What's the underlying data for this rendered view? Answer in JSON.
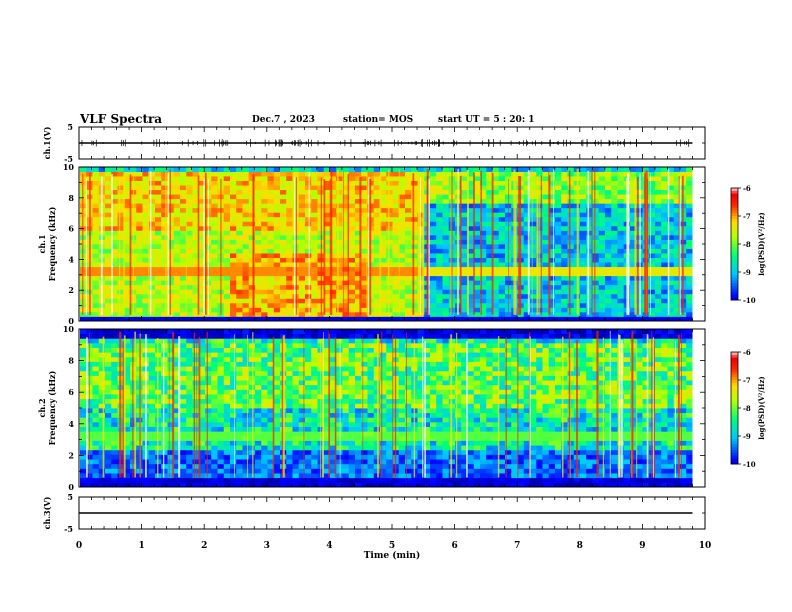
{
  "header": {
    "title": "VLF Spectra",
    "date": "Dec.7 , 2023",
    "station": "station= MOS",
    "start": "start UT = 5 : 20: 1"
  },
  "chart_data": [
    {
      "type": "line",
      "panel": "ch1-waveform",
      "ylabel": "ch.1(V)",
      "ylim": [
        -5,
        5
      ],
      "y_ticks": [
        "5",
        "-5"
      ],
      "xlim": [
        0,
        10
      ],
      "series": [
        {
          "x": [
            0,
            9.8
          ],
          "y": [
            0,
            0
          ]
        }
      ]
    },
    {
      "type": "heatmap",
      "panel": "ch1-spectrogram",
      "ylabel": "ch.1 Frequency (kHz)",
      "xlim": [
        0,
        10
      ],
      "data_x_end": 9.8,
      "ylim": [
        0,
        10
      ],
      "y_ticks": [
        "0",
        "2",
        "4",
        "6",
        "8",
        "10"
      ],
      "colorbar": {
        "label": "log(PSD)(V²/Hz)",
        "range": [
          -10,
          -6
        ],
        "ticks": [
          "-6",
          "-7",
          "-8",
          "-9",
          "-10"
        ]
      },
      "quiet_after_min": 5.5,
      "band_kHz": [
        3.0,
        3.4
      ]
    },
    {
      "type": "heatmap",
      "panel": "ch2-spectrogram",
      "ylabel": "ch.2 Frequency (kHz)",
      "xlim": [
        0,
        10
      ],
      "data_x_end": 9.8,
      "ylim": [
        0,
        10
      ],
      "y_ticks": [
        "0",
        "2",
        "4",
        "6",
        "8",
        "10"
      ],
      "colorbar": {
        "label": "log(PSD)(V²/Hz)",
        "range": [
          -10,
          -6
        ],
        "ticks": [
          "-6",
          "-7",
          "-8",
          "-9",
          "-10"
        ]
      },
      "band_kHz": [
        3.0,
        3.5
      ]
    },
    {
      "type": "line",
      "panel": "ch3-waveform",
      "ylabel": "ch.3(V)",
      "ylim": [
        -5,
        5
      ],
      "y_ticks": [
        "5",
        "-5"
      ],
      "xlim": [
        0,
        10
      ],
      "xlabel": "Time (min)",
      "x_ticks": [
        "0",
        "1",
        "2",
        "3",
        "4",
        "5",
        "6",
        "7",
        "8",
        "9",
        "10"
      ],
      "series": [
        {
          "x": [
            0,
            9.8
          ],
          "y": [
            0,
            0
          ]
        }
      ]
    }
  ]
}
